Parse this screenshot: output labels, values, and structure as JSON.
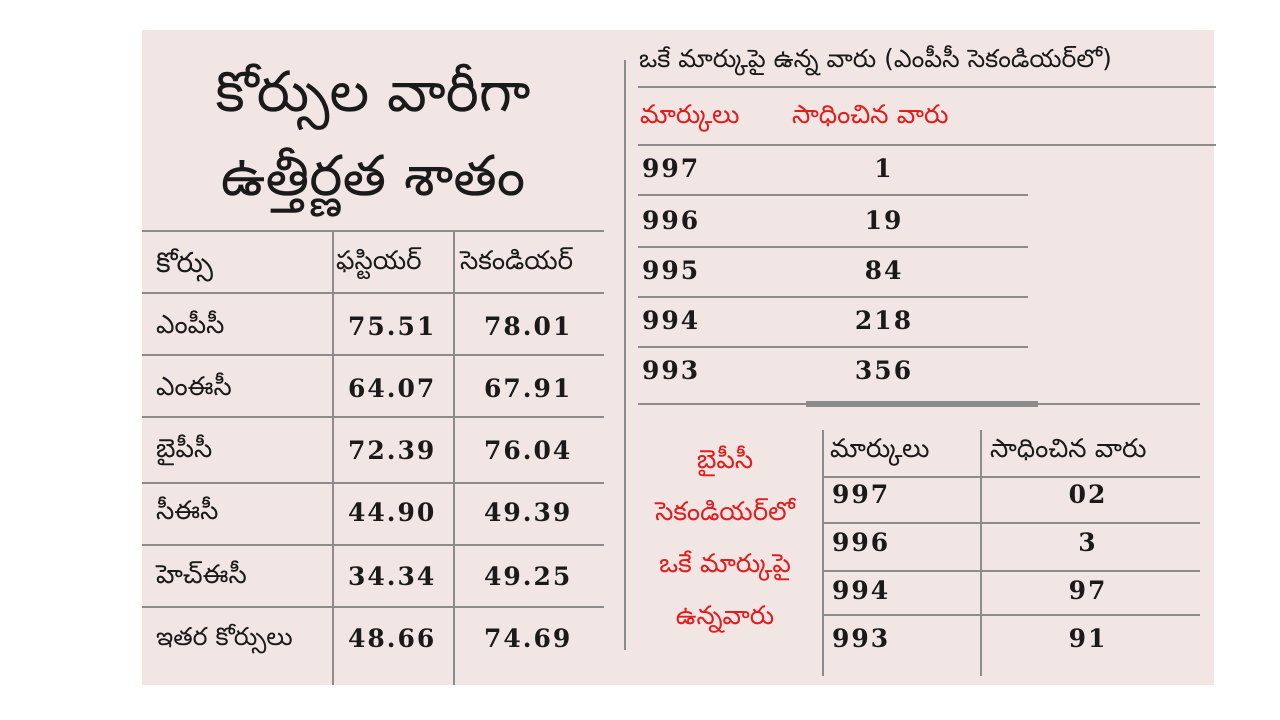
{
  "left": {
    "title_line1": "కోర్సుల వారీగా",
    "title_line2": "ఉత్తీర్ణత శాతం",
    "headers": [
      "కోర్సు",
      "ఫస్టియర్",
      "సెకండియర్"
    ],
    "rows": [
      [
        "ఎంపీసీ",
        "75.51",
        "78.01"
      ],
      [
        "ఎంఈసీ",
        "64.07",
        "67.91"
      ],
      [
        "బైపీసీ",
        "72.39",
        "76.04"
      ],
      [
        "సీఈసీ",
        "44.90",
        "49.39"
      ],
      [
        "హెచ్ఈసీ",
        "34.34",
        "49.25"
      ],
      [
        "ఇతర కోర్సులు",
        "48.66",
        "74.69"
      ]
    ]
  },
  "mpc": {
    "title": "ఒకే మార్కుపై ఉన్న వారు (ఎంపీసీ సెకండియర్‌లో)",
    "headers": [
      "మార్కులు",
      "సాధించిన వారు"
    ],
    "rows": [
      [
        "997",
        "1"
      ],
      [
        "996",
        "19"
      ],
      [
        "995",
        "84"
      ],
      [
        "994",
        "218"
      ],
      [
        "993",
        "356"
      ]
    ]
  },
  "bipc": {
    "label_lines": [
      "బైపీసీ",
      "సెకండియర్‌లో",
      "ఒకే మార్కుపై",
      "ఉన్నవారు"
    ],
    "headers": [
      "మార్కులు",
      "సాధించిన వారు"
    ],
    "rows": [
      [
        "997",
        "02"
      ],
      [
        "996",
        "3"
      ],
      [
        "994",
        "97"
      ],
      [
        "993",
        "91"
      ]
    ]
  },
  "colors": {
    "panel": "#f2e6e5",
    "accent_red": "#e01e1e",
    "rule": "#8c8c8c"
  }
}
